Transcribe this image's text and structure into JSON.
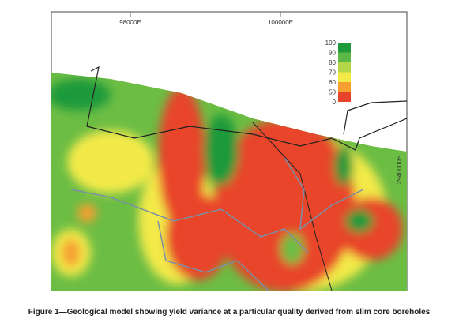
{
  "map": {
    "grid_labels": {
      "top": [
        "98000E",
        "100000E"
      ],
      "right": "2940000S"
    },
    "legend": {
      "ticks": [
        100,
        90,
        80,
        70,
        60,
        50,
        0
      ],
      "bands": [
        {
          "color": "#1f9a3a"
        },
        {
          "color": "#5cb846"
        },
        {
          "color": "#b5d548"
        },
        {
          "color": "#f3ea48"
        },
        {
          "color": "#f5a030"
        },
        {
          "color": "#e8442c"
        }
      ]
    }
  },
  "caption": "Figure 1—Geological model showing yield variance at a particular quality derived from slim core boreholes"
}
